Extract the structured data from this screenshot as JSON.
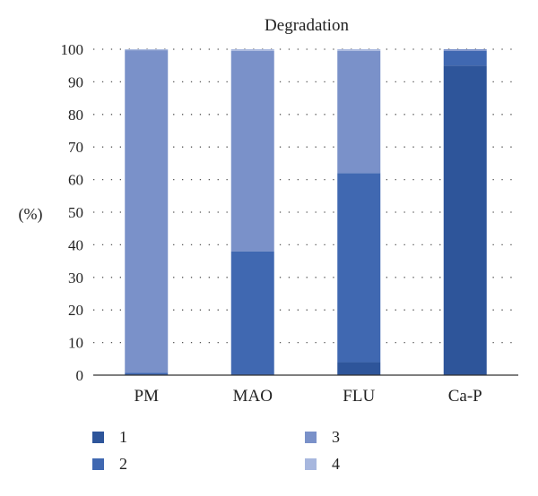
{
  "chart_data": {
    "type": "bar",
    "stacked": true,
    "title": "Degradation",
    "ylabel": "(%)",
    "xlabel": "",
    "ylim": [
      0,
      100
    ],
    "yticks": [
      0,
      10,
      20,
      30,
      40,
      50,
      60,
      70,
      80,
      90,
      100
    ],
    "grid": true,
    "legend_position": "bottom",
    "categories": [
      "PM",
      "MAO",
      "FLU",
      "Ca-P"
    ],
    "series": [
      {
        "name": "1",
        "color": "#2e559a",
        "values": [
          0,
          0,
          4,
          95
        ]
      },
      {
        "name": "2",
        "color": "#4068b1",
        "values": [
          0.7,
          38,
          58,
          4.5
        ]
      },
      {
        "name": "3",
        "color": "#7a91c9",
        "values": [
          99,
          61.5,
          37.5,
          0.5
        ]
      },
      {
        "name": "4",
        "color": "#a7b7de",
        "values": [
          0.3,
          0.5,
          0.5,
          0
        ]
      }
    ]
  }
}
